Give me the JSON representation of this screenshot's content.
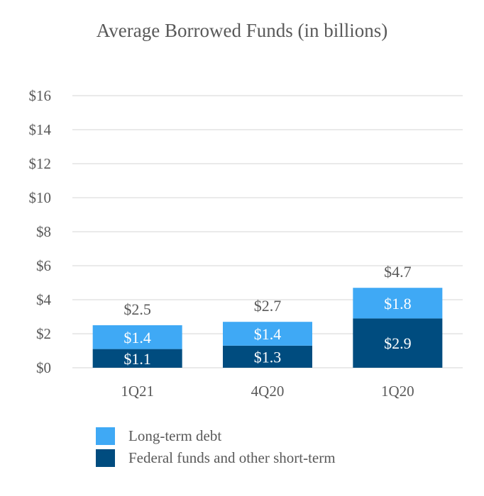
{
  "chart_data": {
    "type": "bar",
    "stacked": true,
    "title": "Average Borrowed Funds (in billions)",
    "categories": [
      "1Q21",
      "4Q20",
      "1Q20"
    ],
    "series": [
      {
        "name": "Federal funds and other short-term",
        "values": [
          1.1,
          1.3,
          2.9
        ],
        "labels": [
          "$1.1",
          "$1.3",
          "$2.9"
        ],
        "color": "#004c7f"
      },
      {
        "name": "Long-term debt",
        "values": [
          1.4,
          1.4,
          1.8
        ],
        "labels": [
          "$1.4",
          "$1.4",
          "$1.8"
        ],
        "color": "#3fa9f5"
      }
    ],
    "totals": [
      2.5,
      2.7,
      4.7
    ],
    "total_labels": [
      "$2.5",
      "$2.7",
      "$4.7"
    ],
    "ylim": [
      0,
      16
    ],
    "y_ticks": [
      0,
      2,
      4,
      6,
      8,
      10,
      12,
      14,
      16
    ],
    "y_tick_labels": [
      "$0",
      "$2",
      "$4",
      "$6",
      "$8",
      "$10",
      "$12",
      "$14",
      "$16"
    ],
    "grid": true,
    "legend_position": "bottom-left",
    "legend": [
      {
        "label": "Long-term debt",
        "color": "#3fa9f5"
      },
      {
        "label": "Federal funds and other short-term",
        "color": "#004c7f"
      }
    ]
  }
}
